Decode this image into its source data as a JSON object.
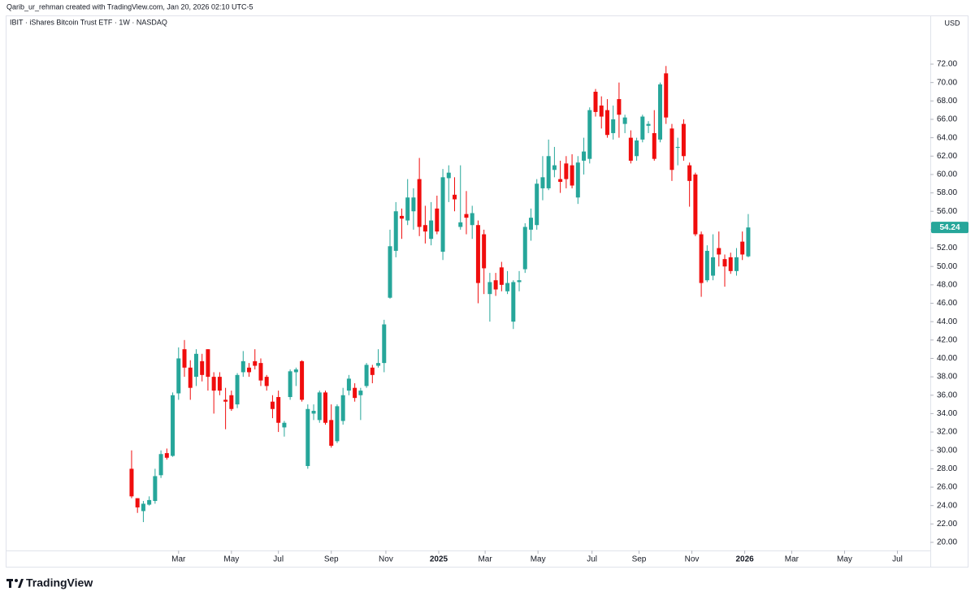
{
  "header": {
    "credit": "Qarib_ur_rehman created with TradingView.com, Jan 20, 2026 02:10 UTC-5"
  },
  "footer": {
    "logo": "TradingView"
  },
  "chart_data": {
    "type": "candlestick",
    "title": "IBIT · iShares Bitcoin Trust ETF · 1W · NASDAQ",
    "currency": "USD",
    "up_color": "#26a69a",
    "down_color": "#f00d0d",
    "xlim": [
      -21.3,
      136
    ],
    "xticks": [
      {
        "value": 8,
        "label": "Mar"
      },
      {
        "value": 17,
        "label": "May"
      },
      {
        "value": 25,
        "label": "Jul"
      },
      {
        "value": 34,
        "label": "Sep"
      },
      {
        "value": 43.3,
        "label": "Nov"
      },
      {
        "value": 52.3,
        "label": "2025"
      },
      {
        "value": 60.2,
        "label": "Mar"
      },
      {
        "value": 69.2,
        "label": "May"
      },
      {
        "value": 78.4,
        "label": "Jul"
      },
      {
        "value": 86.4,
        "label": "Sep"
      },
      {
        "value": 95.4,
        "label": "Nov"
      },
      {
        "value": 104.4,
        "label": "2026"
      },
      {
        "value": 112.4,
        "label": "Mar"
      },
      {
        "value": 121.4,
        "label": "May"
      },
      {
        "value": 130.4,
        "label": "Jul"
      }
    ],
    "ylim": [
      17.35,
      77.21
    ],
    "yticks": [
      {
        "value": 20,
        "label": "20.00"
      },
      {
        "value": 22,
        "label": "22.00"
      },
      {
        "value": 24,
        "label": "24.00"
      },
      {
        "value": 26,
        "label": "26.00"
      },
      {
        "value": 28,
        "label": "28.00"
      },
      {
        "value": 30,
        "label": "30.00"
      },
      {
        "value": 32,
        "label": "32.00"
      },
      {
        "value": 34,
        "label": "34.00"
      },
      {
        "value": 36,
        "label": "36.00"
      },
      {
        "value": 38,
        "label": "38.00"
      },
      {
        "value": 40,
        "label": "40.00"
      },
      {
        "value": 42,
        "label": "42.00"
      },
      {
        "value": 44,
        "label": "44.00"
      },
      {
        "value": 46,
        "label": "46.00"
      },
      {
        "value": 48,
        "label": "48.00"
      },
      {
        "value": 50,
        "label": "50.00"
      },
      {
        "value": 52,
        "label": "52.00"
      },
      {
        "value": 54,
        "label": "54.00"
      },
      {
        "value": 56,
        "label": "56.00"
      },
      {
        "value": 58,
        "label": "58.00"
      },
      {
        "value": 60,
        "label": "60.00"
      },
      {
        "value": 62,
        "label": "62.00"
      },
      {
        "value": 64,
        "label": "64.00"
      },
      {
        "value": 66,
        "label": "66.00"
      },
      {
        "value": 68,
        "label": "68.00"
      },
      {
        "value": 70,
        "label": "70.00"
      },
      {
        "value": 72,
        "label": "72.00"
      }
    ],
    "open": [
      28,
      24.8,
      23.4,
      24.1,
      24.5,
      27.3,
      29.7,
      29.4,
      36.2,
      41,
      39,
      38,
      39.7,
      41,
      38,
      38,
      35.5,
      36,
      35,
      38.5,
      39,
      39.7,
      39.5,
      38,
      35.3,
      35.8,
      32.5,
      35.8,
      38.5,
      39.7,
      28.3,
      34,
      33.3,
      36.3,
      33.3,
      31,
      33.2,
      36.5,
      36.8,
      36,
      37,
      39,
      39.2,
      39.5,
      46.6,
      51.7,
      55.5,
      55,
      56,
      59.5,
      54.5,
      53,
      56.3,
      51.6,
      59.6,
      57.8,
      54.3,
      55.7,
      54.5,
      54.5,
      53.5,
      47,
      48.5,
      49.9,
      47.3,
      44,
      48.3,
      49.7,
      54,
      54.5,
      58.5,
      58.5,
      60.5,
      59.5,
      61.2,
      61,
      57.5,
      61.5,
      61.7,
      69,
      67.5,
      67,
      64.5,
      68.2,
      65.5,
      64,
      62,
      63.8,
      65.3,
      64.5,
      63.8,
      71,
      65,
      62.9,
      65.5,
      61,
      60,
      53.5,
      48.5,
      49,
      52,
      50.8,
      51,
      49.5,
      52.7,
      51.1
    ],
    "high": [
      30,
      24.8,
      24.5,
      25,
      28,
      30,
      30.2,
      36.3,
      41.2,
      42,
      39.8,
      41,
      40.5,
      41,
      38.5,
      38.5,
      36.8,
      36.5,
      38.4,
      40.8,
      39.5,
      41,
      40,
      38.2,
      36,
      36.5,
      33.2,
      38.8,
      39,
      39.8,
      35,
      35,
      36.5,
      36.5,
      35,
      35,
      36.8,
      38.2,
      37.3,
      36.8,
      39.5,
      39.3,
      41,
      44.2,
      54,
      57,
      56.3,
      59.5,
      58.5,
      61.8,
      56.6,
      57,
      57.7,
      60.6,
      61,
      59.7,
      61,
      58.2,
      56.6,
      55,
      54,
      49.3,
      49.3,
      50.5,
      49.5,
      48.5,
      49.5,
      54.7,
      56.3,
      59.5,
      62,
      63.8,
      63,
      61.5,
      62,
      62.2,
      62,
      64,
      67.3,
      69.3,
      68.5,
      68.2,
      67.5,
      70,
      66.5,
      64.8,
      64,
      66.5,
      65.8,
      67,
      70,
      71.8,
      65.5,
      64,
      66,
      61.3,
      60.2,
      53.8,
      52.3,
      53.5,
      53.8,
      51.3,
      51.5,
      52,
      53.8,
      55.7
    ],
    "low": [
      24.8,
      23.2,
      22.2,
      24,
      24.2,
      27,
      29,
      29.3,
      35.5,
      38,
      35.5,
      37,
      37.5,
      36.5,
      34,
      36,
      32.3,
      34.3,
      34.6,
      38,
      38,
      38.8,
      37,
      36.5,
      33.5,
      32,
      31.5,
      35.5,
      37,
      35.3,
      28,
      33.3,
      33,
      32.8,
      30.3,
      30.8,
      32.8,
      36,
      35.3,
      33.3,
      36.8,
      37.3,
      39,
      38.5,
      46.5,
      51,
      53,
      54.5,
      54,
      53.3,
      52.5,
      52.3,
      53.5,
      50.7,
      57,
      56,
      54,
      53.5,
      53,
      46,
      47,
      44,
      46.8,
      47.3,
      47,
      43.2,
      47.3,
      49.3,
      52.8,
      54,
      57.2,
      58.3,
      59.7,
      58,
      58.5,
      58.5,
      56.8,
      60,
      61.2,
      66.3,
      65,
      64,
      63.8,
      64,
      64.5,
      61.2,
      61.5,
      63.5,
      64.5,
      61.5,
      63.5,
      65.5,
      59.3,
      61,
      61.5,
      56.5,
      53.3,
      46.7,
      48.3,
      48.5,
      50,
      47.8,
      49.2,
      49,
      50.7,
      51
    ],
    "close": [
      25,
      23.8,
      24.2,
      24.6,
      27.2,
      29.6,
      29.2,
      36,
      40,
      39,
      36.8,
      40.5,
      38.2,
      38,
      36.5,
      36.5,
      35.3,
      34.5,
      38.2,
      39.7,
      38.5,
      39.2,
      37.6,
      37,
      34.5,
      33,
      33,
      38.6,
      38.8,
      35.5,
      34.5,
      34.3,
      36.3,
      33,
      30.5,
      34.8,
      36,
      37.8,
      35.7,
      36.5,
      39.3,
      38.2,
      39.5,
      43.7,
      52.2,
      56,
      55.2,
      57.5,
      57.5,
      54.3,
      53.8,
      55,
      53.8,
      59.7,
      60.2,
      57.3,
      54.8,
      55.3,
      55.8,
      48.2,
      49.8,
      48.3,
      47.5,
      48,
      48.2,
      48.3,
      48.5,
      54.3,
      55.3,
      59,
      59.7,
      62,
      61,
      59.2,
      59.5,
      58.8,
      61.3,
      62.5,
      67,
      66.8,
      66.3,
      64.3,
      66,
      66.5,
      66.2,
      61.5,
      63.7,
      66.3,
      65.5,
      61.7,
      69.8,
      66.2,
      60.5,
      63,
      62,
      59.3,
      53.5,
      48.2,
      51.7,
      51,
      51.3,
      50,
      49.5,
      51,
      51.3,
      54.24
    ]
  }
}
